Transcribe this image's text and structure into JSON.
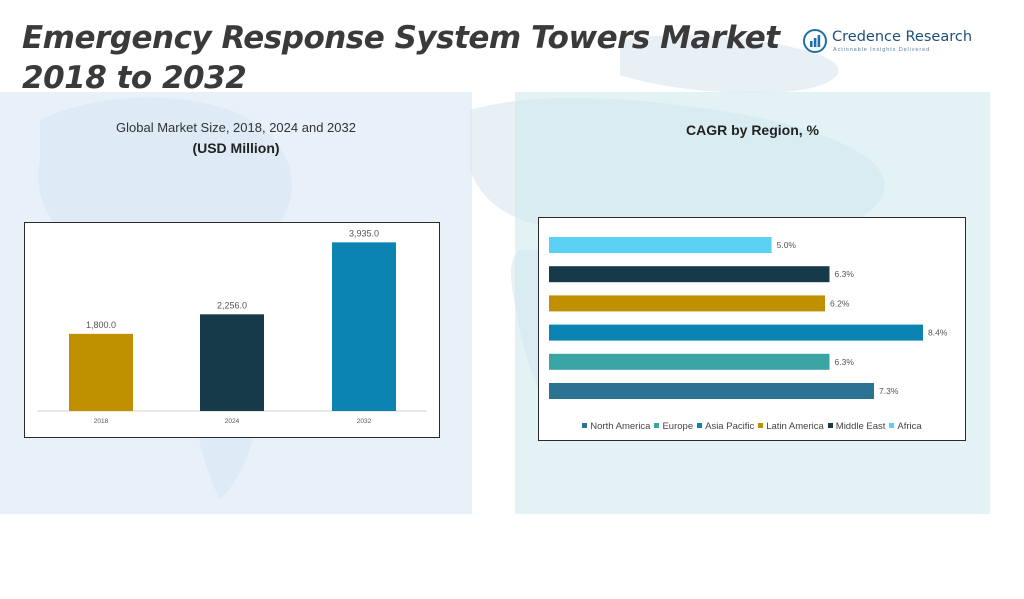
{
  "title_lines": [
    "Emergency Response System Towers Market",
    "2018 to 2032"
  ],
  "brand": {
    "name": "Credence Research",
    "tagline": "Actionable Insights Delivered",
    "color": "#1f6fa8"
  },
  "colors": {
    "title": "#3a3a3a",
    "left_panel": "#d6e6f4",
    "right_panel": "#ceeaee"
  },
  "icons": {
    "logo": "bar-chart-logo-icon"
  },
  "chart_data": [
    {
      "type": "bar",
      "subtitle": "Global Market Size, 2018, 2024 and 2032",
      "title": "(USD Million)",
      "categories": [
        "2018",
        "2024",
        "2032"
      ],
      "values": [
        1800.0,
        2256.0,
        3935.0
      ],
      "value_labels": [
        "1,800.0",
        "2,256.0",
        "3,935.0"
      ],
      "colors": [
        "#bf9000",
        "#173a4a",
        "#0b84b4"
      ],
      "ylim": [
        0,
        4200
      ],
      "grid": false,
      "legend": "none"
    },
    {
      "type": "bar",
      "orientation": "horizontal",
      "title": "CAGR by Region, %",
      "categories": [
        "Africa",
        "Middle East",
        "Latin America",
        "Asia Pacific",
        "Europe",
        "North America"
      ],
      "values": [
        5.0,
        6.3,
        6.2,
        8.4,
        6.3,
        7.3
      ],
      "value_labels": [
        "5.0%",
        "6.3%",
        "6.2%",
        "8.4%",
        "6.3%",
        "7.3%"
      ],
      "colors": [
        "#5bd0f5",
        "#173a4a",
        "#bf9000",
        "#0b84b4",
        "#3aa5a3",
        "#2c7393"
      ],
      "xlim": [
        0,
        8.4
      ],
      "grid": false,
      "legend": "bottom",
      "legend_entries": [
        {
          "name": "North America",
          "color": "#2c7393"
        },
        {
          "name": "Europe",
          "color": "#3aa5a3"
        },
        {
          "name": "Asia Pacific",
          "color": "#0b84b4"
        },
        {
          "name": "Latin America",
          "color": "#bf9000"
        },
        {
          "name": "Middle East",
          "color": "#173a4a"
        },
        {
          "name": "Africa",
          "color": "#5bd0f5"
        }
      ]
    }
  ]
}
